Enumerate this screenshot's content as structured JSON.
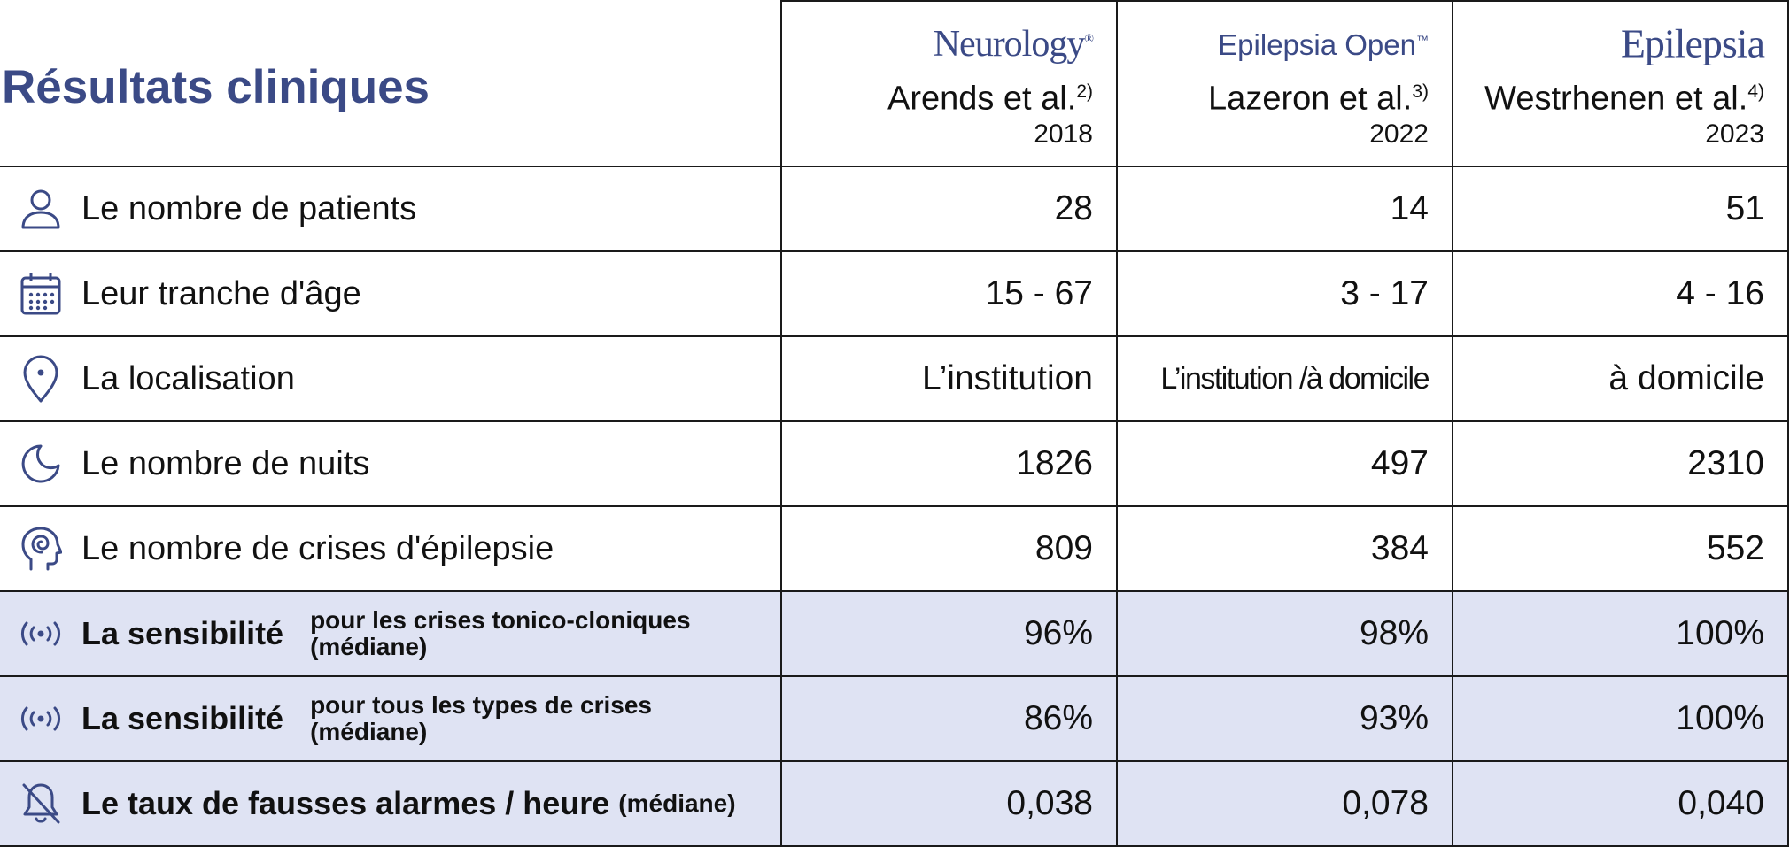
{
  "title": "Résultats cliniques",
  "studies": [
    {
      "journal": "Neurology",
      "journal_mark": "®",
      "author": "Arends et al.",
      "ref": "2)",
      "year": "2018"
    },
    {
      "journal": "Epilepsia Open",
      "journal_mark": "™",
      "author": "Lazeron et al.",
      "ref": "3)",
      "year": "2022"
    },
    {
      "journal": "Epilepsia",
      "journal_mark": "",
      "author": "Westrhenen et al.",
      "ref": "4)",
      "year": "2023"
    }
  ],
  "rows": [
    {
      "icon": "person-icon",
      "label": "Le nombre de patients",
      "values": [
        "28",
        "14",
        "51"
      ]
    },
    {
      "icon": "calendar-icon",
      "label": "Leur tranche d'âge",
      "values": [
        "15 - 67",
        "3 - 17",
        "4 - 16"
      ]
    },
    {
      "icon": "location-pin-icon",
      "label": "La localisation",
      "values": [
        "L’institution",
        "L’institution /à domicile",
        "à domicile"
      ]
    },
    {
      "icon": "moon-icon",
      "label": "Le nombre de nuits",
      "values": [
        "1826",
        "497",
        "2310"
      ]
    },
    {
      "icon": "head-brain-icon",
      "label": "Le nombre de crises d'épilepsie",
      "values": [
        "809",
        "384",
        "552"
      ]
    },
    {
      "icon": "broadcast-icon",
      "label": "La sensibilité",
      "sub1": "pour les crises tonico-cloniques",
      "sub2": "(médiane)",
      "values": [
        "96%",
        "98%",
        "100%"
      ]
    },
    {
      "icon": "broadcast-icon",
      "label": "La sensibilité",
      "sub1": "pour tous les types de crises",
      "sub2": "(médiane)",
      "values": [
        "86%",
        "93%",
        "100%"
      ]
    },
    {
      "icon": "bell-off-icon",
      "label": "Le taux de fausses alarmes / heure",
      "suffix": "(médiane)",
      "values": [
        "0,038",
        "0,078",
        "0,040"
      ]
    }
  ],
  "colors": {
    "accent": "#3b4a86",
    "shade": "#dfe3f3",
    "border": "#1a1a1a"
  }
}
